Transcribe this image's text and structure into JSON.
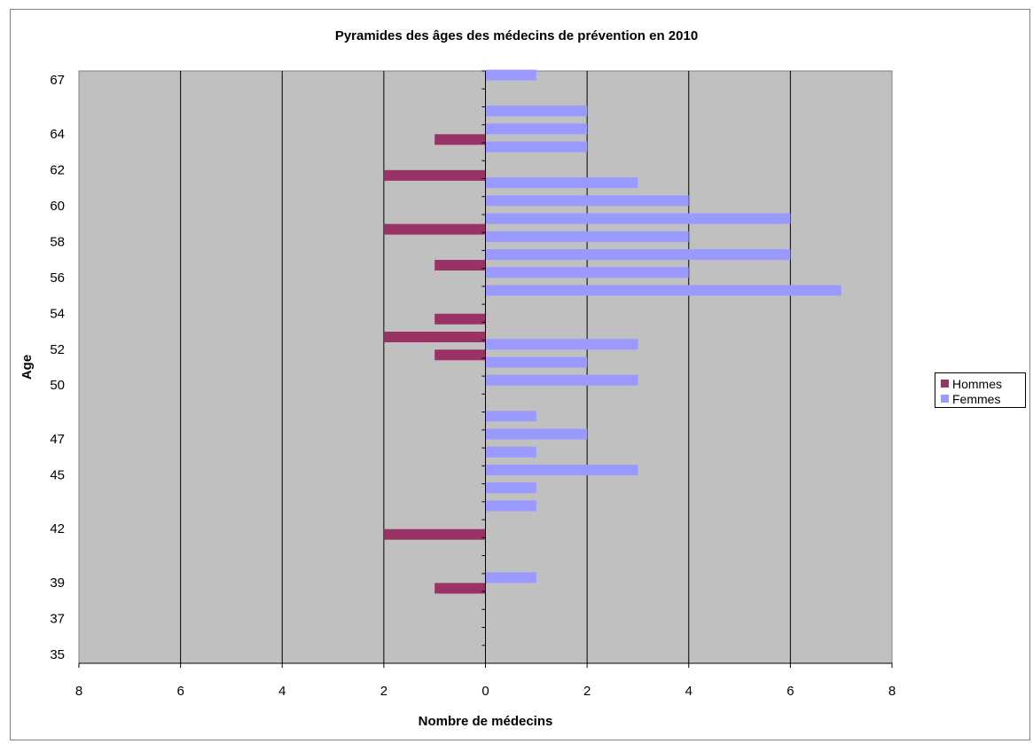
{
  "chart_data": {
    "type": "bar",
    "orientation": "horizontal",
    "title": "Pyramides des âges des médecins de prévention en 2010",
    "xlabel": "Nombre de médecins",
    "ylabel": "Age",
    "xlim": [
      -8,
      8
    ],
    "x_ticks": [
      {
        "value": -8,
        "label": "8"
      },
      {
        "value": -6,
        "label": "6"
      },
      {
        "value": -4,
        "label": "4"
      },
      {
        "value": -2,
        "label": "2"
      },
      {
        "value": 0,
        "label": "0"
      },
      {
        "value": 2,
        "label": "2"
      },
      {
        "value": 4,
        "label": "4"
      },
      {
        "value": 6,
        "label": "6"
      },
      {
        "value": 8,
        "label": "8"
      }
    ],
    "categories": [
      35,
      36,
      37,
      38,
      39,
      40,
      41,
      42,
      43,
      44,
      45,
      46,
      47,
      48,
      49,
      50,
      51,
      52,
      53,
      54,
      55,
      56,
      57,
      58,
      59,
      60,
      61,
      62,
      63,
      64,
      65,
      66,
      67
    ],
    "category_tick_labels": [
      "35",
      "37",
      "39",
      "42",
      "45",
      "47",
      "50",
      "52",
      "54",
      "56",
      "58",
      "60",
      "62",
      "64",
      "67"
    ],
    "series": [
      {
        "name": "Hommes",
        "color": "#993366",
        "values": [
          0,
          0,
          0,
          0,
          -1,
          0,
          0,
          -2,
          0,
          0,
          0,
          0,
          0,
          0,
          0,
          0,
          0,
          -1,
          -2,
          -1,
          0,
          0,
          -1,
          0,
          -2,
          0,
          0,
          -2,
          0,
          -1,
          0,
          0,
          0
        ]
      },
      {
        "name": "Femmes",
        "color": "#9999ff",
        "values": [
          0,
          0,
          0,
          0,
          1,
          0,
          0,
          0,
          1,
          1,
          3,
          1,
          2,
          1,
          0,
          3,
          2,
          3,
          0,
          0,
          7,
          4,
          6,
          4,
          6,
          4,
          3,
          0,
          2,
          2,
          2,
          0,
          1
        ]
      }
    ],
    "grid": true,
    "legend": "right",
    "plot_background": "#c0c0c0"
  }
}
